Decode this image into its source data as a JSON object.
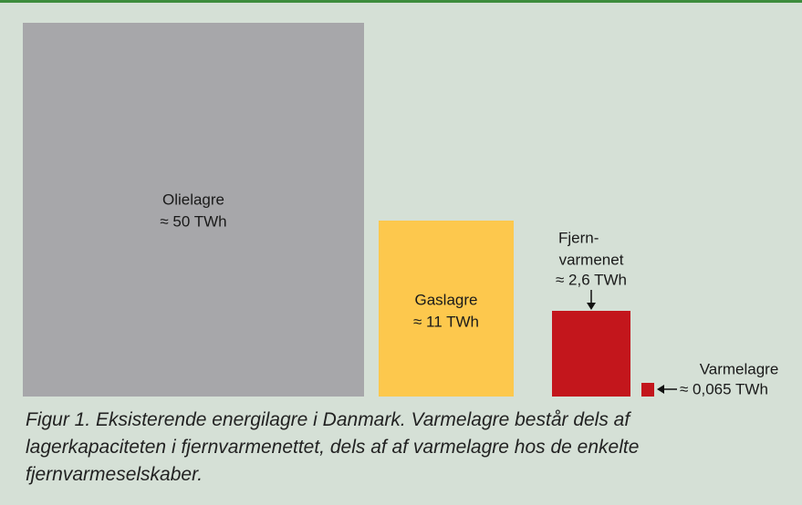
{
  "nodes": [
    {
      "lines": [
        "Olielagre",
        "≈ 50 TWh"
      ]
    },
    {
      "lines": [
        "Gaslagre",
        "≈ 11 TWh"
      ]
    },
    {
      "lines": [
        "Fjern-",
        "varmenet",
        "≈ 2,6 TWh"
      ]
    },
    {
      "lines": [
        "Varmelagre",
        "≈ 0,065 TWh"
      ]
    }
  ],
  "caption": "Figur 1. Eksisterende energilagre i Danmark. Varmelagre består dels af lagerkapaciteten i fjernvarmenettet, dels af af varmelagre hos de enkelte fjernvarmeselskaber."
}
